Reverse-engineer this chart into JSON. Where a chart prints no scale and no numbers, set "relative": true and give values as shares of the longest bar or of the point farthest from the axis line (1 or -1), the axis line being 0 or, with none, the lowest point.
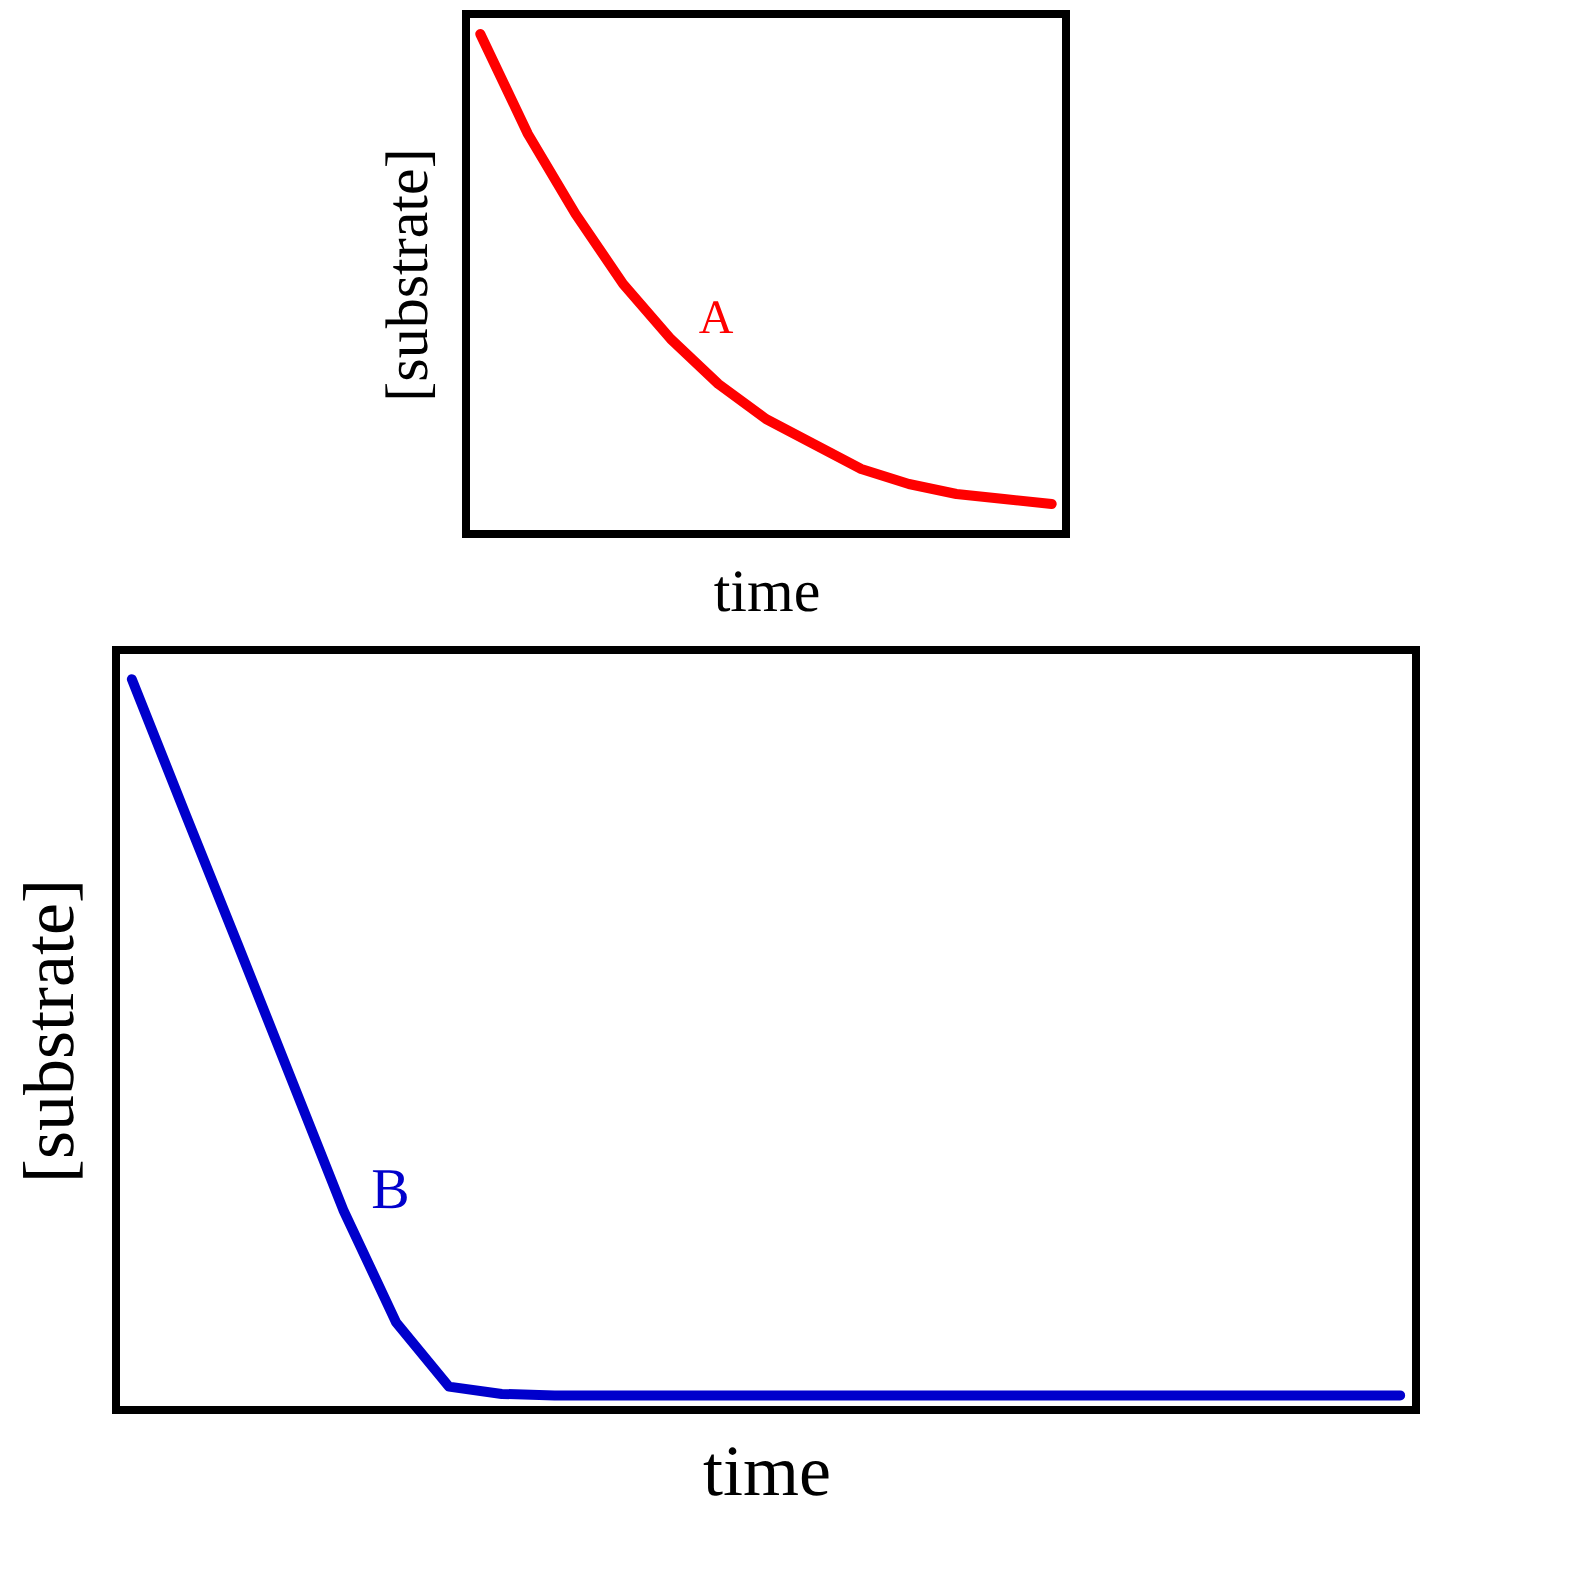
{
  "chart_data": [
    {
      "type": "line",
      "xlabel": "time",
      "ylabel": "[substrate]",
      "relative": true,
      "categories": [
        null,
        null,
        null,
        null,
        null,
        null,
        null,
        null,
        null,
        null,
        null,
        null,
        null
      ],
      "series": [
        {
          "name": "A",
          "color": "#ff0000",
          "values": [
            1.0,
            0.8,
            0.64,
            0.5,
            0.39,
            0.3,
            0.23,
            0.18,
            0.13,
            0.1,
            0.08,
            0.07,
            0.06
          ]
        }
      ]
    },
    {
      "type": "line",
      "xlabel": "time",
      "ylabel": "[substrate]",
      "relative": true,
      "categories": [
        null,
        null,
        null,
        null,
        null,
        null,
        null,
        null,
        null,
        null,
        null,
        null,
        null,
        null,
        null,
        null,
        null,
        null,
        null,
        null,
        null,
        null,
        null,
        null,
        null
      ],
      "series": [
        {
          "name": "B",
          "color": "#0000cc",
          "values": [
            1.0,
            0.818,
            0.638,
            0.456,
            0.274,
            0.12,
            0.032,
            0.022,
            0.02,
            0.02,
            0.02,
            0.02,
            0.02,
            0.02,
            0.02,
            0.02,
            0.02,
            0.02,
            0.02,
            0.02,
            0.02,
            0.02,
            0.02,
            0.02,
            0.02
          ]
        }
      ]
    }
  ]
}
